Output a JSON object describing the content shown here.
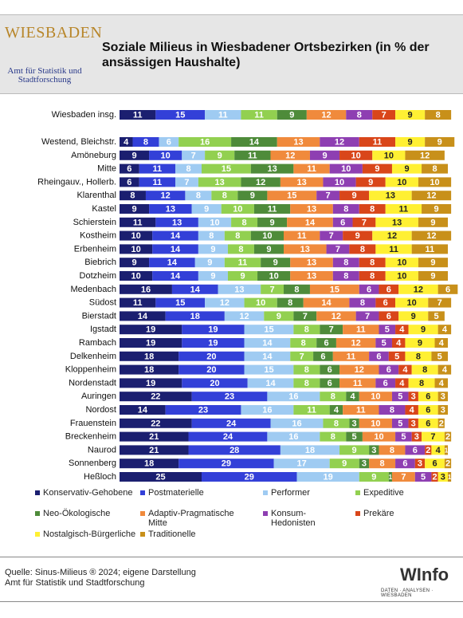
{
  "header": {
    "logo_city": "WIESBADEN",
    "logo_sub": "Amt für Statistik und Stadtforschung"
  },
  "footer": {
    "source": [
      "Quelle: Sinus-Milieus ® 2024; eigene Darstellung",
      "Amt für Statistik und Stadtforschung"
    ],
    "logo": "WInfo",
    "logo_sub": "DATEN · ANALYSEN · WIESBADEN"
  },
  "chart_data": {
    "type": "bar",
    "orientation": "horizontal",
    "stacked": true,
    "title": "Soziale Milieus in Wiesbadener Ortsbezirken (in % der ansässigen Haushalte)",
    "categories": [
      "Wiesbaden insg.",
      "Westend, Bleichstr.",
      "Amöneburg",
      "Mitte",
      "Rheingauv., Hollerb.",
      "Klarenthal",
      "Kastel",
      "Schierstein",
      "Kostheim",
      "Erbenheim",
      "Biebrich",
      "Dotzheim",
      "Medenbach",
      "Südost",
      "Bierstadt",
      "Igstadt",
      "Rambach",
      "Delkenheim",
      "Kloppenheim",
      "Nordenstadt",
      "Auringen",
      "Nordost",
      "Frauenstein",
      "Breckenheim",
      "Naurod",
      "Sonnenberg",
      "Heßloch"
    ],
    "series": [
      {
        "name": "Konservativ-Gehobene",
        "color": "#1b1f70",
        "label_color": "#ffffff",
        "values": [
          11,
          4,
          9,
          6,
          6,
          8,
          9,
          11,
          10,
          10,
          9,
          10,
          16,
          11,
          14,
          19,
          19,
          18,
          18,
          19,
          22,
          14,
          22,
          21,
          21,
          18,
          25
        ]
      },
      {
        "name": "Postmaterielle",
        "color": "#3340d8",
        "label_color": "#ffffff",
        "values": [
          15,
          8,
          10,
          11,
          11,
          12,
          13,
          13,
          14,
          14,
          14,
          14,
          14,
          15,
          18,
          19,
          19,
          20,
          20,
          20,
          23,
          23,
          24,
          24,
          28,
          29,
          29
        ]
      },
      {
        "name": "Performer",
        "color": "#9fcbf2",
        "label_color": "#ffffff",
        "values": [
          11,
          6,
          7,
          8,
          7,
          8,
          9,
          10,
          8,
          9,
          9,
          9,
          13,
          12,
          12,
          15,
          14,
          14,
          15,
          14,
          16,
          16,
          16,
          16,
          18,
          17,
          19
        ]
      },
      {
        "name": "Expeditive",
        "color": "#92d050",
        "label_color": "#ffffff",
        "values": [
          11,
          16,
          9,
          15,
          13,
          8,
          10,
          8,
          8,
          8,
          11,
          9,
          7,
          10,
          9,
          8,
          8,
          7,
          8,
          8,
          8,
          11,
          8,
          8,
          9,
          9,
          9
        ]
      },
      {
        "name": "Neo-Ökologische",
        "color": "#4e8b3a",
        "label_color": "#ffffff",
        "values": [
          9,
          14,
          11,
          13,
          12,
          9,
          11,
          9,
          10,
          9,
          9,
          10,
          8,
          8,
          7,
          7,
          6,
          6,
          6,
          6,
          4,
          4,
          3,
          5,
          3,
          3,
          1
        ]
      },
      {
        "name": "Adaptiv-Pragmatische Mitte",
        "color": "#f08a3c",
        "label_color": "#ffffff",
        "values": [
          12,
          13,
          12,
          11,
          13,
          15,
          13,
          14,
          11,
          13,
          13,
          13,
          15,
          14,
          12,
          11,
          12,
          11,
          12,
          11,
          10,
          11,
          10,
          10,
          8,
          8,
          7
        ]
      },
      {
        "name": "Konsum-Hedonisten",
        "color": "#8e3fb2",
        "label_color": "#ffffff",
        "values": [
          8,
          12,
          9,
          10,
          10,
          7,
          8,
          6,
          7,
          7,
          8,
          8,
          6,
          8,
          7,
          5,
          5,
          6,
          6,
          6,
          5,
          8,
          5,
          5,
          6,
          6,
          5
        ]
      },
      {
        "name": "Prekäre",
        "color": "#d9461a",
        "label_color": "#ffffff",
        "values": [
          7,
          11,
          10,
          9,
          9,
          9,
          8,
          7,
          9,
          8,
          8,
          8,
          6,
          6,
          6,
          4,
          4,
          5,
          4,
          4,
          3,
          4,
          3,
          3,
          2,
          3,
          2
        ]
      },
      {
        "name": "Nostalgisch-Bürgerliche",
        "color": "#fff033",
        "label_color": "#222222",
        "values": [
          9,
          9,
          10,
          9,
          10,
          13,
          11,
          13,
          12,
          11,
          10,
          10,
          12,
          10,
          9,
          9,
          9,
          8,
          8,
          8,
          6,
          6,
          6,
          7,
          4,
          6,
          3
        ]
      },
      {
        "name": "Traditionelle",
        "color": "#c8901a",
        "label_color": "#ffffff",
        "values": [
          8,
          9,
          12,
          8,
          10,
          12,
          9,
          9,
          12,
          11,
          9,
          9,
          6,
          7,
          5,
          4,
          4,
          5,
          4,
          4,
          3,
          3,
          2,
          2,
          1,
          2,
          1
        ]
      }
    ]
  }
}
